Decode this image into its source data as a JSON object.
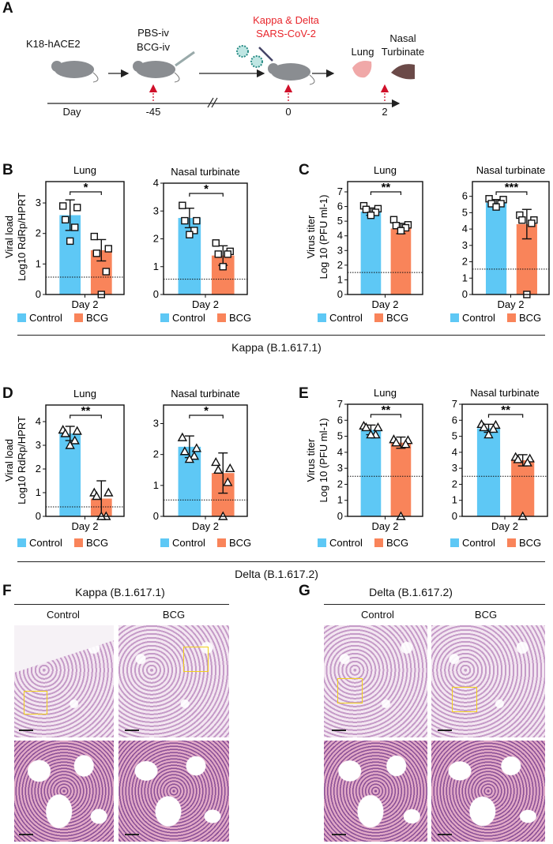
{
  "colors": {
    "control": "#5ec8f5",
    "bcg": "#f9845a",
    "highlight": "#e8262c",
    "roi": "#f2d21b"
  },
  "panelA": {
    "letter": "A",
    "strain": "K18-hACE2",
    "treat1": "PBS-iv",
    "treat2": "BCG-iv",
    "virus1": "Kappa & Delta",
    "virus2": "SARS-CoV-2",
    "organ1": "Lung",
    "organ2a": "Nasal",
    "organ2b": "Turbinate",
    "timeline": {
      "label": "Day",
      "ticks": [
        "-45",
        "0",
        "2"
      ]
    },
    "icons": [
      "mouse-icon",
      "syringe-icon",
      "virus-icon",
      "pipette-icon",
      "lung-icon",
      "nasal-turbinate-icon"
    ]
  },
  "letters": {
    "B": "B",
    "C": "C",
    "D": "D",
    "E": "E",
    "F": "F",
    "G": "G"
  },
  "legend": {
    "control": "Control",
    "bcg": "BCG"
  },
  "groups": {
    "kappa": "Kappa (B.1.617.1)",
    "delta": "Delta (B.1.617.2)"
  },
  "ylabels": {
    "viral": {
      "line1": "Viral load",
      "line2": "Log10 RdRp/HPRT"
    },
    "titer": {
      "line1": "Virus titer",
      "line2": "Log 10 (PFU ml-1)"
    }
  },
  "chart_data": [
    {
      "panel": "B",
      "type": "bar",
      "title": "Lung",
      "xlabel": "Day 2",
      "ylim": [
        0,
        3.7
      ],
      "yticks": [
        0,
        1,
        2,
        3
      ],
      "lod": 0.57,
      "sig": "*",
      "marker": "square",
      "series": [
        {
          "name": "Control",
          "mean": 2.6,
          "sd": 0.5,
          "points": [
            2.9,
            2.85,
            2.45,
            2.2,
            1.75
          ]
        },
        {
          "name": "BCG",
          "mean": 1.45,
          "sd": 0.35,
          "points": [
            1.9,
            1.5,
            1.35,
            0.75,
            0
          ]
        }
      ]
    },
    {
      "panel": "B",
      "type": "bar",
      "title": "Nasal turbinate",
      "xlabel": "Day 2",
      "ylim": [
        0,
        4
      ],
      "yticks": [
        0,
        1,
        2,
        3,
        4
      ],
      "lod": 0.55,
      "sig": "*",
      "marker": "square",
      "series": [
        {
          "name": "Control",
          "mean": 2.75,
          "sd": 0.35,
          "points": [
            3.2,
            2.65,
            2.65,
            2.3,
            2.15
          ]
        },
        {
          "name": "BCG",
          "mean": 1.4,
          "sd": 0.35,
          "points": [
            1.85,
            1.55,
            1.45,
            1.45,
            1.0
          ]
        }
      ]
    },
    {
      "panel": "C",
      "type": "bar",
      "title": "Lung",
      "xlabel": "Day 2",
      "ylim": [
        0,
        7.7
      ],
      "yticks": [
        0,
        1,
        2,
        3,
        4,
        5,
        6,
        7
      ],
      "lod": 1.5,
      "sig": "**",
      "marker": "square",
      "series": [
        {
          "name": "Control",
          "mean": 5.65,
          "sd": 0.25,
          "points": [
            6.05,
            5.85,
            5.8,
            5.6,
            5.4
          ]
        },
        {
          "name": "BCG",
          "mean": 4.5,
          "sd": 0.35,
          "points": [
            5.1,
            4.75,
            4.7,
            4.55,
            4.35
          ]
        }
      ]
    },
    {
      "panel": "C",
      "type": "bar",
      "title": "Nasal turbinate",
      "xlabel": "Day 2",
      "ylim": [
        0,
        6.9
      ],
      "yticks": [
        0,
        1,
        2,
        3,
        4,
        5,
        6
      ],
      "lod": 1.55,
      "sig": "***",
      "marker": "square",
      "series": [
        {
          "name": "Control",
          "mean": 5.6,
          "sd": 0.2,
          "points": [
            5.85,
            5.8,
            5.55,
            5.55,
            5.35
          ]
        },
        {
          "name": "BCG",
          "mean": 4.3,
          "sd": 0.9,
          "points": [
            4.85,
            4.55,
            4.55,
            4.35,
            0
          ]
        }
      ]
    },
    {
      "panel": "D",
      "type": "bar",
      "title": "Lung",
      "xlabel": "Day 2",
      "ylim": [
        0,
        4.7
      ],
      "yticks": [
        0,
        1,
        2,
        3,
        4
      ],
      "lod": 0.4,
      "sig": "**",
      "marker": "triangle",
      "series": [
        {
          "name": "Control",
          "mean": 3.5,
          "sd": 0.3,
          "points": [
            3.65,
            3.6,
            3.5,
            3.2,
            3.0
          ]
        },
        {
          "name": "BCG",
          "mean": 0.75,
          "sd": 0.75,
          "points": [
            1.0,
            1.0,
            0.85,
            0,
            0
          ]
        }
      ]
    },
    {
      "panel": "D",
      "type": "bar",
      "title": "Nasal turbinate",
      "xlabel": "Day 2",
      "ylim": [
        0,
        3.6
      ],
      "yticks": [
        0,
        1,
        2,
        3
      ],
      "lod": 0.53,
      "sig": "*",
      "marker": "triangle",
      "series": [
        {
          "name": "Control",
          "mean": 2.25,
          "sd": 0.35,
          "points": [
            2.55,
            2.2,
            2.1,
            1.95,
            1.85
          ]
        },
        {
          "name": "BCG",
          "mean": 1.4,
          "sd": 0.65,
          "points": [
            1.75,
            1.55,
            1.5,
            1.1,
            0
          ]
        }
      ]
    },
    {
      "panel": "E",
      "type": "bar",
      "title": "Lung",
      "xlabel": "Day 2",
      "ylim": [
        0,
        7
      ],
      "yticks": [
        0,
        1,
        2,
        3,
        4,
        5,
        6,
        7
      ],
      "lod": 2.5,
      "sig": "**",
      "marker": "triangle",
      "series": [
        {
          "name": "Control",
          "mean": 5.4,
          "sd": 0.3,
          "points": [
            5.65,
            5.55,
            5.55,
            5.1,
            5.1
          ]
        },
        {
          "name": "BCG",
          "mean": 4.6,
          "sd": 0.35,
          "points": [
            4.8,
            4.75,
            4.6,
            4.5,
            0
          ]
        }
      ]
    },
    {
      "panel": "E",
      "type": "bar",
      "title": "Nasal turbinate",
      "xlabel": "Day 2",
      "ylim": [
        0,
        7
      ],
      "yticks": [
        0,
        1,
        2,
        3,
        4,
        5,
        6,
        7
      ],
      "lod": 2.5,
      "sig": "**",
      "marker": "triangle",
      "series": [
        {
          "name": "Control",
          "mean": 5.5,
          "sd": 0.25,
          "points": [
            5.75,
            5.7,
            5.55,
            5.45,
            5.1
          ]
        },
        {
          "name": "BCG",
          "mean": 3.5,
          "sd": 0.35,
          "points": [
            3.7,
            3.6,
            3.55,
            3.35,
            0
          ]
        }
      ]
    }
  ],
  "panelF": {
    "title": "Kappa (B.1.617.1)",
    "col1": "Control",
    "col2": "BCG"
  },
  "panelG": {
    "title": "Delta (B.1.617.2)",
    "col1": "Control",
    "col2": "BCG"
  }
}
